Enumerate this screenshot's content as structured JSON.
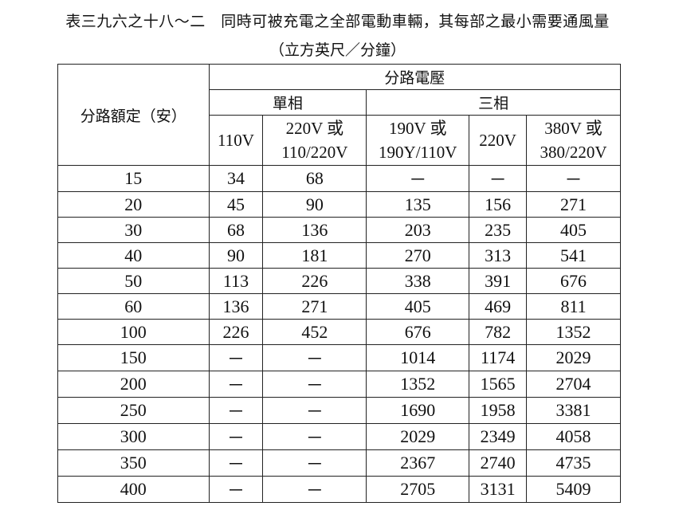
{
  "title": "表三九六之十八～二　同時可被充電之全部電動車輛，其每部之最小需要通風量",
  "subtitle": "（立方英尺／分鐘）",
  "table": {
    "rating_header": "分路額定（安）",
    "voltage_header": "分路電壓",
    "single_phase": "單相",
    "three_phase": "三相",
    "columns": [
      {
        "l1": "110V",
        "l2": ""
      },
      {
        "l1": "220V 或",
        "l2": "110/220V"
      },
      {
        "l1": "190V 或",
        "l2": "190Y/110V"
      },
      {
        "l1": "220V",
        "l2": ""
      },
      {
        "l1": "380V 或",
        "l2": "380/220V"
      }
    ],
    "rows": [
      [
        "15",
        "34",
        "68",
        "－",
        "－",
        "－"
      ],
      [
        "20",
        "45",
        "90",
        "135",
        "156",
        "271"
      ],
      [
        "30",
        "68",
        "136",
        "203",
        "235",
        "405"
      ],
      [
        "40",
        "90",
        "181",
        "270",
        "313",
        "541"
      ],
      [
        "50",
        "113",
        "226",
        "338",
        "391",
        "676"
      ],
      [
        "60",
        "136",
        "271",
        "405",
        "469",
        "811"
      ],
      [
        "100",
        "226",
        "452",
        "676",
        "782",
        "1352"
      ],
      [
        "150",
        "－",
        "－",
        "1014",
        "1174",
        "2029"
      ],
      [
        "200",
        "－",
        "－",
        "1352",
        "1565",
        "2704"
      ],
      [
        "250",
        "－",
        "－",
        "1690",
        "1958",
        "3381"
      ],
      [
        "300",
        "－",
        "－",
        "2029",
        "2349",
        "4058"
      ],
      [
        "350",
        "－",
        "－",
        "2367",
        "2740",
        "4735"
      ],
      [
        "400",
        "－",
        "－",
        "2705",
        "3131",
        "5409"
      ]
    ]
  }
}
